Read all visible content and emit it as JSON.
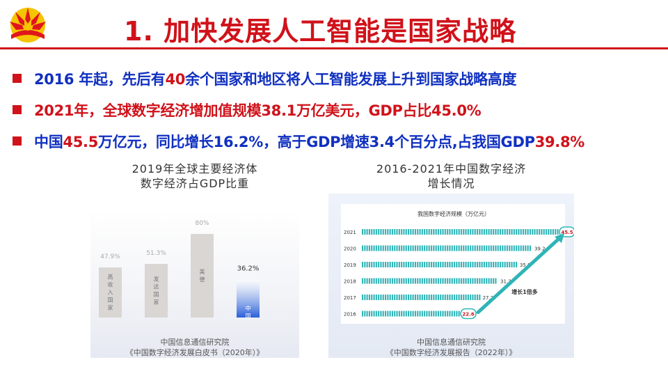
{
  "title": "1. 加快发展人工智能是国家战略",
  "bullets": [
    [
      {
        "text": "2016 年起，先后有",
        "color": "blue"
      },
      {
        "text": "40",
        "color": "red"
      },
      {
        "text": "余个国家和地区将人工智能发展上升到国家战略高度",
        "color": "blue"
      }
    ],
    [
      {
        "text": "2021年，全球数字经济增加值规模",
        "color": "red"
      },
      {
        "text": "38.1万亿",
        "color": "red"
      },
      {
        "text": "美元，GDP占比",
        "color": "red"
      },
      {
        "text": "45.0%",
        "color": "red"
      }
    ],
    [
      {
        "text": "中国",
        "color": "blue"
      },
      {
        "text": "45.5",
        "color": "red"
      },
      {
        "text": "万亿元，同比增长16.2%，高于GDP增速3.4个百分点,占我国GDP",
        "color": "blue"
      },
      {
        "text": "39.8%",
        "color": "red"
      }
    ]
  ],
  "chart_data": [
    {
      "type": "bar",
      "title": "2019年全球主要经济体\n数字经济占GDP比重",
      "categories": [
        "高收入国家",
        "发达国家",
        "美德",
        "中国"
      ],
      "values": [
        47.9,
        51.3,
        80,
        36.2
      ],
      "labels": [
        "47.9%",
        "51.3%",
        "80%",
        "36.2%"
      ],
      "highlight_index": 3,
      "colors": {
        "default": "#d9d6d3",
        "highlight": "#2a5fd8"
      },
      "source": [
        "中国信息通信研究院",
        "《中国数字经济发展白皮书（2020年）》"
      ]
    },
    {
      "type": "bar",
      "orientation": "horizontal",
      "title": "2016-2021年中国数字经济\n增长情况",
      "inner_title": "我国数字经济规模（万亿元）",
      "categories": [
        "2021",
        "2020",
        "2019",
        "2018",
        "2017",
        "2016"
      ],
      "values": [
        45.5,
        39.2,
        35.8,
        31.3,
        27.2,
        22.6
      ],
      "circled": [
        "45.5",
        "22.6"
      ],
      "annotation": "增长1倍多",
      "colors": {
        "bar": "#2fb4b7",
        "arrow": "#2fb4b7"
      },
      "source": [
        "中国信息通信研究院",
        "《中国数字经济发展报告（2022年）》"
      ]
    }
  ]
}
